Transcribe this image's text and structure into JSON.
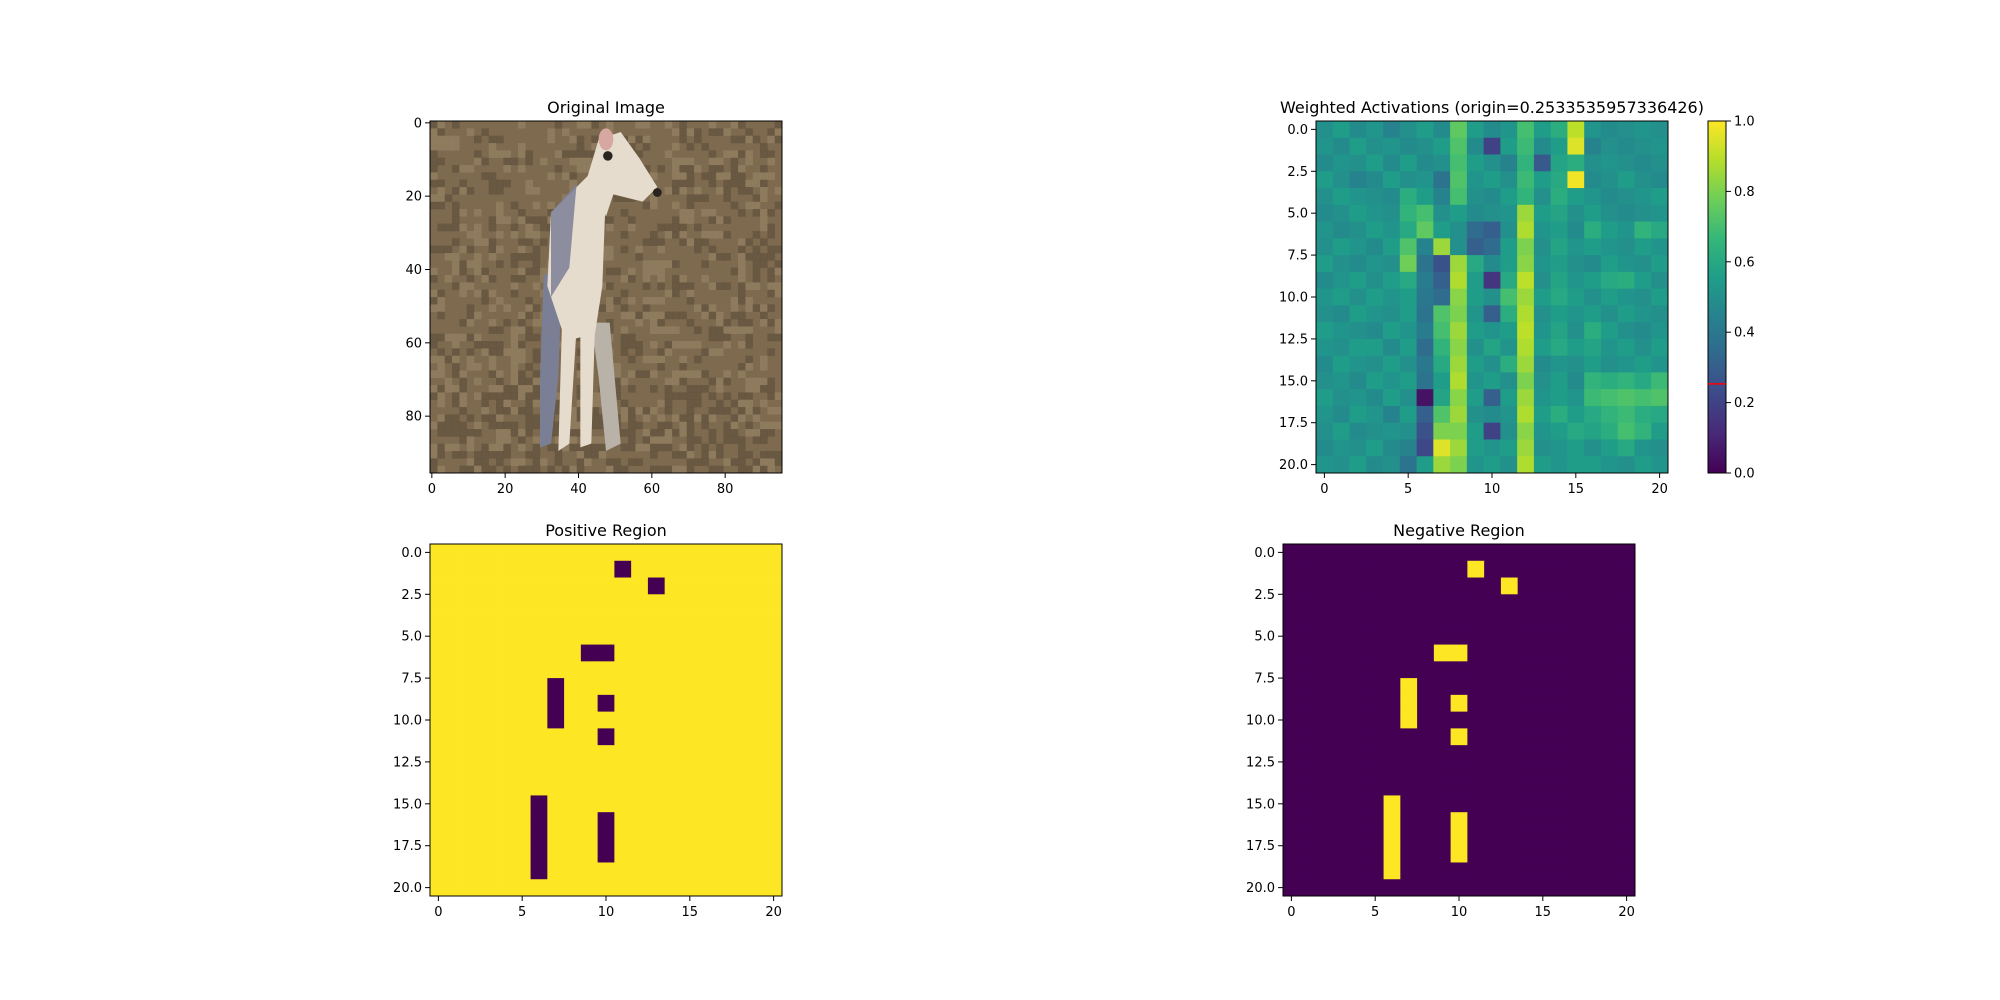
{
  "figure": {
    "background": "#ffffff",
    "colormap": "viridis",
    "colors": {
      "viridis_low": "#440154",
      "viridis_high": "#fde725",
      "origin_marker": "#ff0000",
      "frame": "#000000"
    }
  },
  "chart_data": [
    {
      "id": "original",
      "type": "image",
      "title": "Original Image",
      "xlim": [
        -0.5,
        95.5
      ],
      "ylim": [
        95.5,
        -0.5
      ],
      "xticks": [
        0,
        20,
        40,
        60,
        80
      ],
      "xtick_labels": [
        "0",
        "20",
        "40",
        "60",
        "80"
      ],
      "yticks": [
        0,
        20,
        40,
        60,
        80
      ],
      "ytick_labels": [
        "0",
        "20",
        "40",
        "60",
        "80"
      ],
      "content": "photo",
      "palette": {
        "ground": "#7d6a4f",
        "ground_dark": "#5e4f3a",
        "ground_light": "#9a8566",
        "dog_light": "#e6dccd",
        "dog_shadow": "#7b7f95",
        "ear": "#d7a8a2",
        "eye": "#2a2420"
      }
    },
    {
      "id": "weighted",
      "type": "heatmap",
      "title": "Weighted Activations (origin=0.2533535957336426)",
      "origin": 0.2533535957336426,
      "grid_shape": [
        21,
        21
      ],
      "xlim": [
        -0.5,
        20.5
      ],
      "ylim": [
        20.5,
        -0.5
      ],
      "xticks": [
        0,
        5,
        10,
        15,
        20
      ],
      "xtick_labels": [
        "0",
        "5",
        "10",
        "15",
        "20"
      ],
      "yticks": [
        0,
        2.5,
        5,
        7.5,
        10,
        12.5,
        15,
        17.5,
        20
      ],
      "ytick_labels": [
        "0.0",
        "2.5",
        "5.0",
        "7.5",
        "10.0",
        "12.5",
        "15.0",
        "17.5",
        "20.0"
      ],
      "colorbar": {
        "range": [
          0,
          1
        ],
        "ticks": [
          0,
          0.2,
          0.4,
          0.6,
          0.8,
          1.0
        ],
        "tick_labels": [
          "0.0",
          "0.2",
          "0.4",
          "0.6",
          "0.8",
          "1.0"
        ],
        "marker_value": 0.2533535957336426
      },
      "values": [
        [
          0.5,
          0.55,
          0.48,
          0.52,
          0.45,
          0.5,
          0.55,
          0.48,
          0.75,
          0.55,
          0.48,
          0.52,
          0.7,
          0.55,
          0.62,
          0.9,
          0.52,
          0.48,
          0.5,
          0.52,
          0.5
        ],
        [
          0.52,
          0.48,
          0.55,
          0.5,
          0.52,
          0.48,
          0.5,
          0.55,
          0.72,
          0.48,
          0.2,
          0.55,
          0.68,
          0.48,
          0.55,
          0.95,
          0.45,
          0.5,
          0.48,
          0.5,
          0.52
        ],
        [
          0.48,
          0.52,
          0.5,
          0.55,
          0.48,
          0.55,
          0.48,
          0.5,
          0.7,
          0.55,
          0.5,
          0.45,
          0.65,
          0.28,
          0.58,
          0.62,
          0.5,
          0.52,
          0.5,
          0.48,
          0.5
        ],
        [
          0.55,
          0.5,
          0.45,
          0.48,
          0.55,
          0.5,
          0.52,
          0.38,
          0.72,
          0.52,
          0.55,
          0.5,
          0.68,
          0.55,
          0.6,
          0.98,
          0.48,
          0.5,
          0.55,
          0.5,
          0.48
        ],
        [
          0.5,
          0.55,
          0.52,
          0.5,
          0.48,
          0.62,
          0.55,
          0.45,
          0.7,
          0.5,
          0.48,
          0.55,
          0.65,
          0.5,
          0.62,
          0.55,
          0.52,
          0.48,
          0.5,
          0.52,
          0.55
        ],
        [
          0.48,
          0.5,
          0.55,
          0.52,
          0.5,
          0.65,
          0.7,
          0.5,
          0.55,
          0.48,
          0.5,
          0.52,
          0.85,
          0.55,
          0.58,
          0.5,
          0.55,
          0.5,
          0.48,
          0.5,
          0.52
        ],
        [
          0.52,
          0.48,
          0.5,
          0.55,
          0.52,
          0.6,
          0.75,
          0.55,
          0.5,
          0.35,
          0.3,
          0.5,
          0.88,
          0.52,
          0.55,
          0.48,
          0.62,
          0.55,
          0.52,
          0.65,
          0.6
        ],
        [
          0.5,
          0.55,
          0.52,
          0.48,
          0.55,
          0.72,
          0.45,
          0.85,
          0.5,
          0.3,
          0.35,
          0.55,
          0.8,
          0.5,
          0.58,
          0.52,
          0.55,
          0.52,
          0.5,
          0.55,
          0.52
        ],
        [
          0.55,
          0.5,
          0.48,
          0.52,
          0.5,
          0.78,
          0.38,
          0.25,
          0.85,
          0.6,
          0.48,
          0.55,
          0.82,
          0.52,
          0.55,
          0.5,
          0.48,
          0.55,
          0.52,
          0.5,
          0.55
        ],
        [
          0.48,
          0.52,
          0.55,
          0.5,
          0.55,
          0.6,
          0.42,
          0.3,
          0.88,
          0.55,
          0.15,
          0.6,
          0.9,
          0.5,
          0.58,
          0.52,
          0.55,
          0.6,
          0.62,
          0.55,
          0.5
        ],
        [
          0.52,
          0.55,
          0.5,
          0.55,
          0.52,
          0.55,
          0.4,
          0.35,
          0.82,
          0.55,
          0.5,
          0.7,
          0.85,
          0.55,
          0.6,
          0.55,
          0.5,
          0.55,
          0.52,
          0.5,
          0.55
        ],
        [
          0.5,
          0.48,
          0.55,
          0.52,
          0.5,
          0.55,
          0.38,
          0.72,
          0.8,
          0.52,
          0.3,
          0.62,
          0.88,
          0.5,
          0.55,
          0.52,
          0.55,
          0.5,
          0.55,
          0.52,
          0.5
        ],
        [
          0.55,
          0.52,
          0.5,
          0.48,
          0.55,
          0.52,
          0.42,
          0.7,
          0.85,
          0.55,
          0.52,
          0.55,
          0.9,
          0.52,
          0.58,
          0.5,
          0.62,
          0.55,
          0.5,
          0.48,
          0.52
        ],
        [
          0.52,
          0.5,
          0.55,
          0.55,
          0.48,
          0.55,
          0.35,
          0.65,
          0.82,
          0.5,
          0.58,
          0.52,
          0.88,
          0.55,
          0.6,
          0.55,
          0.58,
          0.52,
          0.55,
          0.5,
          0.55
        ],
        [
          0.48,
          0.55,
          0.52,
          0.5,
          0.55,
          0.5,
          0.4,
          0.6,
          0.85,
          0.55,
          0.5,
          0.62,
          0.85,
          0.48,
          0.52,
          0.5,
          0.55,
          0.5,
          0.52,
          0.55,
          0.52
        ],
        [
          0.5,
          0.52,
          0.48,
          0.55,
          0.52,
          0.55,
          0.38,
          0.55,
          0.88,
          0.52,
          0.55,
          0.5,
          0.8,
          0.5,
          0.55,
          0.48,
          0.65,
          0.62,
          0.65,
          0.6,
          0.68
        ],
        [
          0.55,
          0.5,
          0.52,
          0.48,
          0.55,
          0.5,
          0.05,
          0.58,
          0.82,
          0.55,
          0.3,
          0.55,
          0.85,
          0.52,
          0.55,
          0.52,
          0.68,
          0.7,
          0.72,
          0.7,
          0.72
        ],
        [
          0.52,
          0.48,
          0.55,
          0.52,
          0.45,
          0.55,
          0.3,
          0.72,
          0.85,
          0.5,
          0.48,
          0.52,
          0.88,
          0.55,
          0.62,
          0.55,
          0.6,
          0.65,
          0.68,
          0.62,
          0.6
        ],
        [
          0.5,
          0.55,
          0.48,
          0.5,
          0.52,
          0.5,
          0.25,
          0.8,
          0.8,
          0.55,
          0.2,
          0.5,
          0.82,
          0.52,
          0.55,
          0.6,
          0.58,
          0.62,
          0.7,
          0.65,
          0.55
        ],
        [
          0.48,
          0.52,
          0.5,
          0.55,
          0.48,
          0.45,
          0.22,
          0.95,
          0.85,
          0.55,
          0.52,
          0.55,
          0.85,
          0.5,
          0.52,
          0.55,
          0.5,
          0.55,
          0.6,
          0.52,
          0.5
        ],
        [
          0.52,
          0.5,
          0.55,
          0.48,
          0.5,
          0.38,
          0.55,
          0.85,
          0.8,
          0.52,
          0.55,
          0.5,
          0.88,
          0.55,
          0.52,
          0.55,
          0.55,
          0.52,
          0.5,
          0.55,
          0.52
        ]
      ]
    },
    {
      "id": "positive",
      "type": "heatmap",
      "title": "Positive Region",
      "grid_shape": [
        21,
        21
      ],
      "xlim": [
        -0.5,
        20.5
      ],
      "ylim": [
        20.5,
        -0.5
      ],
      "xticks": [
        0,
        5,
        10,
        15,
        20
      ],
      "xtick_labels": [
        "0",
        "5",
        "10",
        "15",
        "20"
      ],
      "yticks": [
        0,
        2.5,
        5,
        7.5,
        10,
        12.5,
        15,
        17.5,
        20
      ],
      "ytick_labels": [
        "0.0",
        "2.5",
        "5.0",
        "7.5",
        "10.0",
        "12.5",
        "15.0",
        "17.5",
        "20.0"
      ],
      "background_value": 1,
      "cell_value": 0,
      "cells": [
        [
          1,
          11
        ],
        [
          2,
          13
        ],
        [
          6,
          9
        ],
        [
          6,
          10
        ],
        [
          8,
          7
        ],
        [
          9,
          7
        ],
        [
          10,
          7
        ],
        [
          9,
          10
        ],
        [
          11,
          10
        ],
        [
          15,
          6
        ],
        [
          16,
          6
        ],
        [
          17,
          6
        ],
        [
          18,
          6
        ],
        [
          19,
          6
        ],
        [
          16,
          10
        ],
        [
          17,
          10
        ],
        [
          18,
          10
        ]
      ]
    },
    {
      "id": "negative",
      "type": "heatmap",
      "title": "Negative Region",
      "grid_shape": [
        21,
        21
      ],
      "xlim": [
        -0.5,
        20.5
      ],
      "ylim": [
        20.5,
        -0.5
      ],
      "xticks": [
        0,
        5,
        10,
        15,
        20
      ],
      "xtick_labels": [
        "0",
        "5",
        "10",
        "15",
        "20"
      ],
      "yticks": [
        0,
        2.5,
        5,
        7.5,
        10,
        12.5,
        15,
        17.5,
        20
      ],
      "ytick_labels": [
        "0.0",
        "2.5",
        "5.0",
        "7.5",
        "10.0",
        "12.5",
        "15.0",
        "17.5",
        "20.0"
      ],
      "background_value": 0,
      "cell_value": 1,
      "cells": [
        [
          1,
          11
        ],
        [
          2,
          13
        ],
        [
          6,
          9
        ],
        [
          6,
          10
        ],
        [
          8,
          7
        ],
        [
          9,
          7
        ],
        [
          10,
          7
        ],
        [
          9,
          10
        ],
        [
          11,
          10
        ],
        [
          15,
          6
        ],
        [
          16,
          6
        ],
        [
          17,
          6
        ],
        [
          18,
          6
        ],
        [
          19,
          6
        ],
        [
          16,
          10
        ],
        [
          17,
          10
        ],
        [
          18,
          10
        ]
      ]
    }
  ]
}
